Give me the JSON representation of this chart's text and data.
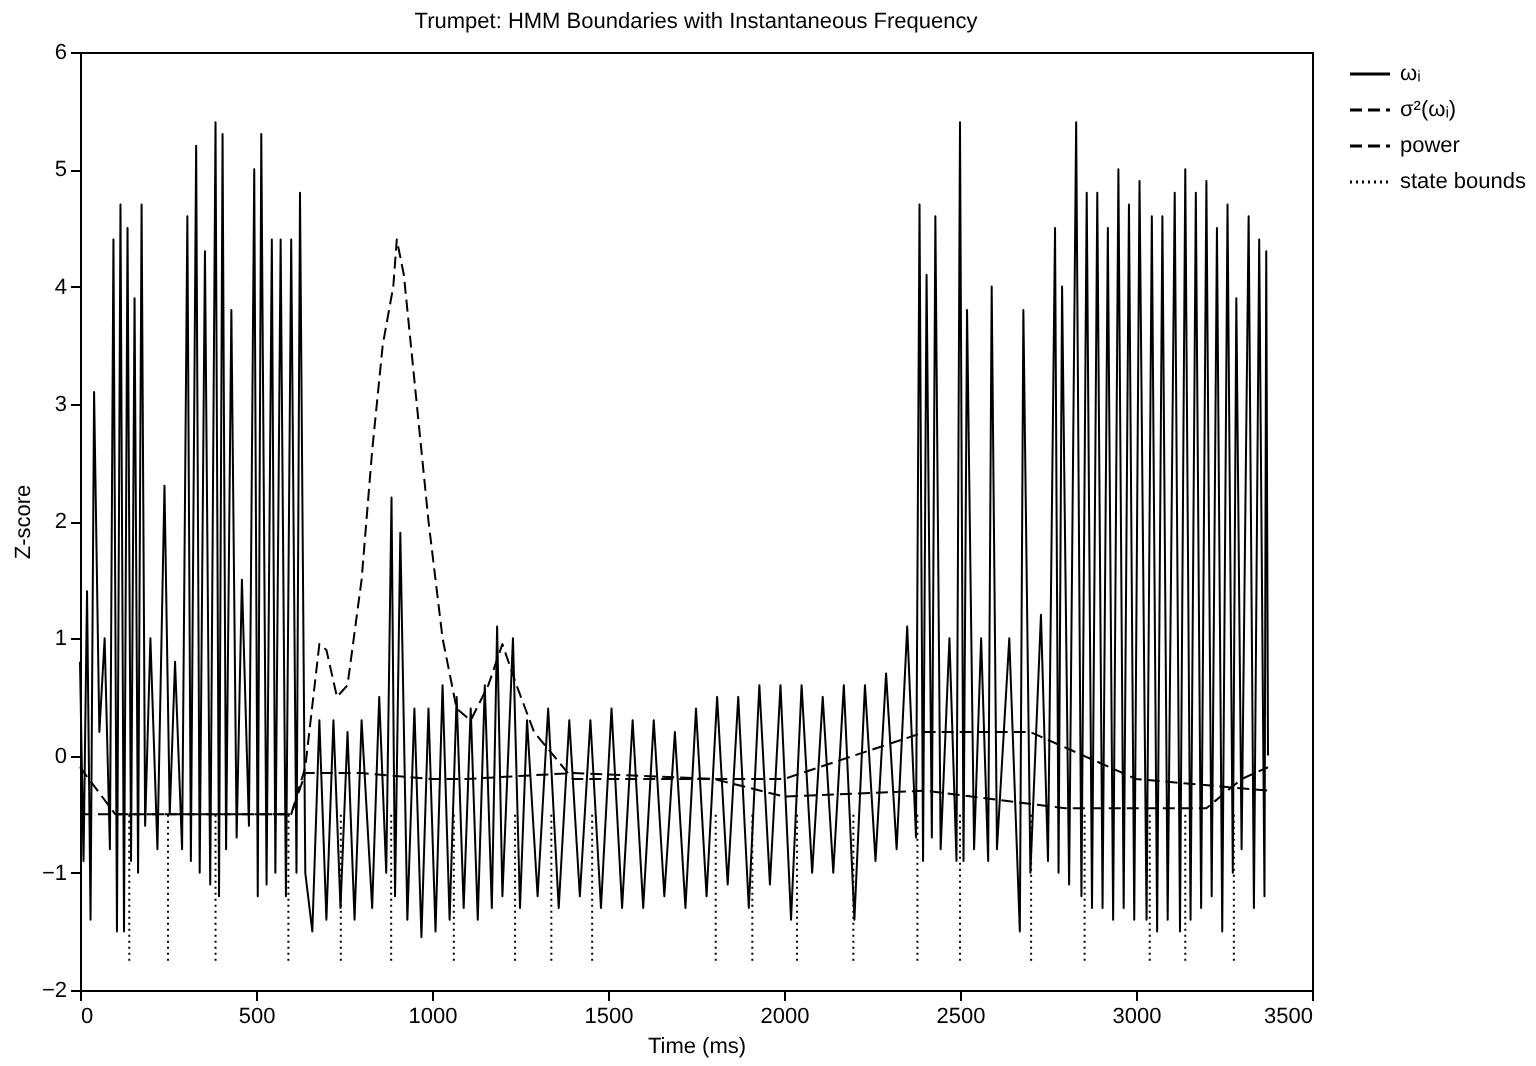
{
  "chart_data": {
    "type": "line",
    "title": "Trumpet: HMM Boundaries with Instantaneous Frequency",
    "xlabel": "Time (ms)",
    "ylabel": "Z-score",
    "xlim": [
      0,
      3500
    ],
    "xticks": [
      0,
      500,
      1000,
      1500,
      2000,
      2500,
      3000,
      3500
    ],
    "ylim": [
      -2,
      6
    ],
    "yticks": [
      -2,
      -1,
      0,
      1,
      2,
      3,
      4,
      5,
      6
    ],
    "grid": false,
    "legend": "right",
    "series": [
      {
        "name": "ωᵢ",
        "color": "#000000",
        "line_style": "solid",
        "x": [
          0,
          10,
          20,
          30,
          40,
          55,
          70,
          85,
          95,
          105,
          115,
          125,
          135,
          145,
          155,
          165,
          175,
          185,
          200,
          220,
          240,
          255,
          270,
          290,
          305,
          315,
          330,
          340,
          355,
          370,
          385,
          395,
          405,
          415,
          430,
          445,
          460,
          480,
          495,
          505,
          515,
          530,
          545,
          555,
          570,
          585,
          600,
          615,
          625,
          640,
          660,
          680,
          700,
          720,
          740,
          760,
          780,
          800,
          830,
          850,
          870,
          885,
          895,
          910,
          930,
          950,
          970,
          990,
          1010,
          1030,
          1050,
          1070,
          1090,
          1110,
          1130,
          1150,
          1170,
          1185,
          1200,
          1230,
          1250,
          1270,
          1300,
          1330,
          1360,
          1390,
          1420,
          1450,
          1480,
          1510,
          1540,
          1570,
          1600,
          1630,
          1660,
          1690,
          1720,
          1750,
          1780,
          1810,
          1840,
          1870,
          1900,
          1930,
          1960,
          1990,
          2020,
          2050,
          2080,
          2110,
          2140,
          2170,
          2200,
          2230,
          2260,
          2290,
          2320,
          2350,
          2375,
          2385,
          2395,
          2405,
          2420,
          2430,
          2445,
          2470,
          2490,
          2500,
          2510,
          2520,
          2540,
          2560,
          2580,
          2590,
          2605,
          2640,
          2670,
          2680,
          2700,
          2730,
          2750,
          2770,
          2780,
          2790,
          2810,
          2830,
          2845,
          2860,
          2875,
          2890,
          2905,
          2920,
          2935,
          2950,
          2965,
          2980,
          2995,
          3010,
          3030,
          3045,
          3060,
          3075,
          3090,
          3110,
          3125,
          3140,
          3155,
          3170,
          3185,
          3200,
          3215,
          3230,
          3245,
          3260,
          3275,
          3285,
          3300,
          3320,
          3335,
          3350,
          3365,
          3370,
          3375
        ],
        "values": [
          0.8,
          -0.9,
          1.4,
          -1.4,
          3.1,
          0.2,
          1.0,
          -0.8,
          4.4,
          -1.5,
          4.7,
          -1.5,
          4.5,
          -0.9,
          3.9,
          -1.0,
          4.7,
          -0.6,
          1.0,
          -0.8,
          2.3,
          -0.5,
          0.8,
          -0.8,
          4.6,
          -0.9,
          5.2,
          -1.0,
          4.3,
          -1.1,
          5.4,
          -1.2,
          5.3,
          -0.8,
          3.8,
          -0.7,
          1.5,
          -0.6,
          5.0,
          -1.2,
          5.3,
          -1.1,
          4.4,
          -1.0,
          4.4,
          -1.2,
          4.4,
          -1.0,
          4.8,
          -1.0,
          -1.5,
          0.3,
          -1.4,
          0.3,
          -1.3,
          0.2,
          -1.4,
          0.3,
          -1.3,
          0.5,
          -1.0,
          2.2,
          -1.2,
          1.9,
          -1.4,
          0.4,
          -1.55,
          0.4,
          -1.5,
          0.6,
          -1.4,
          0.5,
          -1.3,
          0.4,
          -1.4,
          0.6,
          -1.3,
          1.1,
          -1.2,
          1.0,
          -1.3,
          0.3,
          -1.2,
          0.4,
          -1.3,
          0.3,
          -1.2,
          0.3,
          -1.3,
          0.4,
          -1.3,
          0.3,
          -1.3,
          0.3,
          -1.2,
          0.2,
          -1.3,
          0.4,
          -1.2,
          0.5,
          -1.1,
          0.5,
          -1.3,
          0.6,
          -1.1,
          0.6,
          -1.4,
          0.6,
          -1.0,
          0.5,
          -1.0,
          0.6,
          -1.4,
          0.6,
          -0.9,
          0.7,
          -0.8,
          1.1,
          -0.7,
          4.7,
          -0.9,
          4.1,
          -0.7,
          4.6,
          -0.8,
          1.0,
          -0.9,
          5.4,
          -0.9,
          3.8,
          -0.8,
          1.0,
          -0.9,
          4.0,
          -0.8,
          1.0,
          -1.5,
          3.8,
          -1.0,
          1.2,
          -0.9,
          4.5,
          -1.0,
          4.0,
          -1.1,
          5.4,
          -1.2,
          4.8,
          -1.3,
          4.8,
          -1.3,
          4.5,
          -1.4,
          5.0,
          -1.3,
          4.7,
          -1.4,
          4.9,
          -1.4,
          4.6,
          -1.5,
          4.6,
          -1.4,
          4.8,
          -1.5,
          5.0,
          -1.4,
          4.8,
          -1.3,
          4.9,
          -1.2,
          4.5,
          -1.5,
          4.7,
          -1.0,
          3.9,
          -0.8,
          4.6,
          -1.3,
          4.4,
          -1.2,
          4.3,
          0.0
        ]
      },
      {
        "name": "σ²(ωᵢ)",
        "color": "#000000",
        "line_style": "dashed",
        "x": [
          0,
          100,
          300,
          600,
          640,
          800,
          1000,
          1100,
          1400,
          1800,
          2000,
          2400,
          2800,
          3200,
          3300,
          3375
        ],
        "values": [
          -0.5,
          -0.5,
          -0.5,
          -0.5,
          -0.15,
          -0.15,
          -0.2,
          -0.2,
          -0.15,
          -0.2,
          -0.35,
          -0.3,
          -0.45,
          -0.45,
          -0.2,
          -0.1
        ]
      },
      {
        "name": "power",
        "color": "#000000",
        "line_style": "dashed",
        "x": [
          0,
          100,
          300,
          600,
          640,
          680,
          700,
          730,
          760,
          800,
          830,
          860,
          890,
          900,
          920,
          950,
          990,
          1030,
          1070,
          1110,
          1160,
          1200,
          1240,
          1290,
          1400,
          2000,
          2400,
          2700,
          3000,
          3375
        ],
        "values": [
          -0.1,
          -0.5,
          -0.5,
          -0.5,
          -0.1,
          0.95,
          0.9,
          0.5,
          0.6,
          1.5,
          2.6,
          3.5,
          4.0,
          4.4,
          4.1,
          3.2,
          2.0,
          1.0,
          0.4,
          0.3,
          0.6,
          0.95,
          0.6,
          0.2,
          -0.2,
          -0.2,
          0.2,
          0.2,
          -0.2,
          -0.3
        ]
      },
      {
        "name": "state bounds",
        "color": "#000000",
        "line_style": "dotted",
        "x": [
          140,
          140,
          250,
          250,
          385,
          385,
          592,
          592,
          741,
          741,
          884,
          884,
          1062,
          1062,
          1236,
          1236,
          1339,
          1339,
          1455,
          1455,
          1806,
          1806,
          1910,
          1910,
          2037,
          2037,
          2197,
          2197,
          2379,
          2379,
          2500,
          2500,
          2702,
          2702,
          2854,
          2854,
          3039,
          3039,
          3140,
          3140,
          3278,
          3278
        ],
        "values": [
          -1.75,
          -0.5,
          -1.75,
          -0.5,
          -1.75,
          -0.5,
          -1.75,
          -0.5,
          -1.75,
          -0.5,
          -1.75,
          -0.5,
          -1.75,
          -0.5,
          -1.75,
          -0.5,
          -1.75,
          -0.5,
          -1.75,
          -0.5,
          -1.75,
          -0.5,
          -1.75,
          -0.5,
          -1.75,
          -0.5,
          -1.75,
          -0.5,
          -1.75,
          -0.5,
          -1.75,
          -0.5,
          -1.75,
          -0.5,
          -1.75,
          -0.5,
          -1.75,
          -0.5,
          -1.75,
          -0.5,
          -1.75,
          -0.5
        ]
      }
    ]
  }
}
